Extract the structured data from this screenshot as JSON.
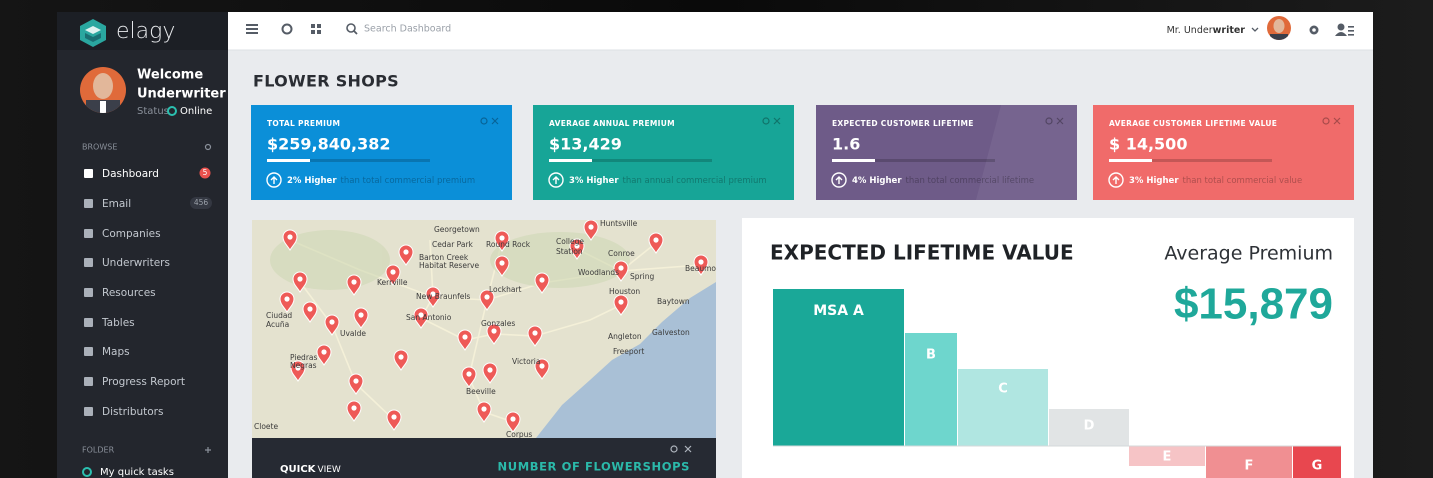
{
  "sidebar": {
    "brand": "elagy",
    "welcome": "Welcome",
    "user": "Underwriter",
    "status_label": "Status",
    "status": "Online",
    "browse": "BROWSE",
    "nav": [
      {
        "label": "Dashboard",
        "badge": 5
      },
      {
        "label": "Email",
        "badge": 456
      },
      {
        "label": "Companies"
      },
      {
        "label": "Underwriters"
      },
      {
        "label": "Resources"
      },
      {
        "label": "Tables"
      },
      {
        "label": "Maps"
      },
      {
        "label": "Progress Report"
      },
      {
        "label": "Distributors"
      }
    ],
    "folder": "FOLDER",
    "folder_items": [
      "My quick tasks"
    ]
  },
  "topbar": {
    "search_placeholder": "Search Dashboard",
    "user_prefix": "Mr. Under",
    "user_bold": "writer"
  },
  "page_title": "FLOWER SHOPS",
  "cards": [
    {
      "label": "TOTAL PREMIUM",
      "value": "$259,840,382",
      "change": "2% Higher",
      "note": "than total commercial premium"
    },
    {
      "label": "AVERAGE ANNUAL PREMIUM",
      "value": "$13,429",
      "change": "3% Higher",
      "note": "than annual commercial premium"
    },
    {
      "label": "EXPECTED CUSTOMER LIFETIME",
      "value": "1.6",
      "change": "4% Higher",
      "note": "than total commercial lifetime"
    },
    {
      "label": "AVERAGE CUSTOMER LIFETIME VALUE",
      "value": "$ 14,500",
      "change": "3% Higher",
      "note": "than total commercial value"
    }
  ],
  "map": {
    "labels": [
      "Huntsville",
      "Georgetown",
      "Cedar Park",
      "Round Rock",
      "College",
      "Station",
      "Conroe",
      "Barton Creek",
      "Habitat Reserve",
      "Kerrville",
      "Woodlands",
      "Spring",
      "Beaumont",
      "New Braunfels",
      "Lockhart",
      "Houston",
      "Baytown",
      "Ciudad",
      "Acuña",
      "San Antonio",
      "Gonzales",
      "Uvalde",
      "Galveston",
      "Angleton",
      "Freeport",
      "Piedras",
      "Negras",
      "Victoria",
      "Beeville",
      "Cloete",
      "Corpus"
    ],
    "footer_bold": "QUICK",
    "footer_rest": "VIEW",
    "footer_title": "NUMBER OF FLOWERSHOPS"
  },
  "ltv": {
    "title": "EXPECTED LIFETIME VALUE",
    "premium_label": "Average Premium",
    "premium_value": "$15,879",
    "segments": [
      "MSA A",
      "B",
      "C",
      "D",
      "E",
      "F",
      "G"
    ]
  }
}
